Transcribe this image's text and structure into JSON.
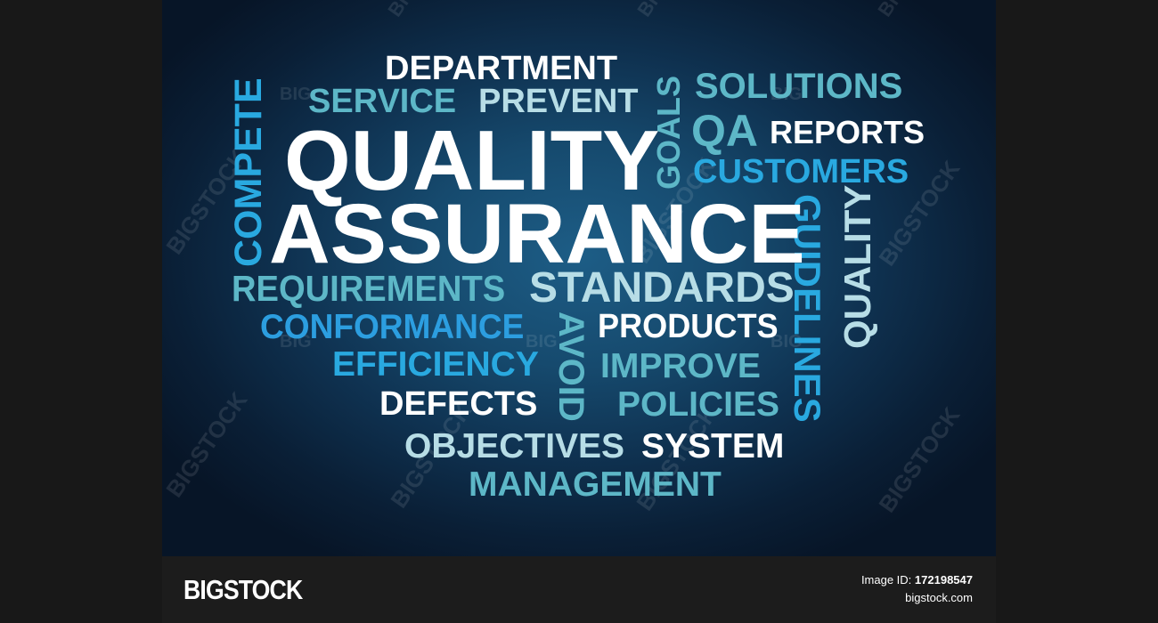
{
  "cloud": {
    "department": "DEPARTMENT",
    "service": "SERVICE",
    "prevent": "PREVENT",
    "goals": "GOALS",
    "solutions": "SOLUTIONS",
    "qa": "QA",
    "reports": "REPORTS",
    "customers": "CUSTOMERS",
    "compete": "COMPETE",
    "quality_big": "QUALITY",
    "assurance": "ASSURANCE",
    "guidelines": "GUIDELINES",
    "quality_vertical": "QUALITY",
    "requirements": "REQUIREMENTS",
    "standards": "STANDARDS",
    "conformance": "CONFORMANCE",
    "avoid": "AVOID",
    "products": "PRODUCTS",
    "efficiency": "EFFICIENCY",
    "improve": "IMPROVE",
    "defects": "DEFECTS",
    "policies": "POLICIES",
    "objectives": "OBJECTIVES",
    "system": "SYSTEM",
    "management": "MANAGEMENT"
  },
  "watermark": {
    "word": "BIGSTOCK",
    "short": "BIG"
  },
  "footer": {
    "brand": "BIGSTOCK",
    "image_id_label": "Image ID:",
    "image_id_value": "172198547",
    "site": "bigstock.com"
  },
  "colors": {
    "white": "#ffffff",
    "pale": "#b7dde6",
    "teal": "#5db7c7",
    "cyan": "#29a9e0",
    "background_center": "#1d5d86",
    "background_edge": "#071527",
    "footer_bg": "#1c1c1c"
  }
}
